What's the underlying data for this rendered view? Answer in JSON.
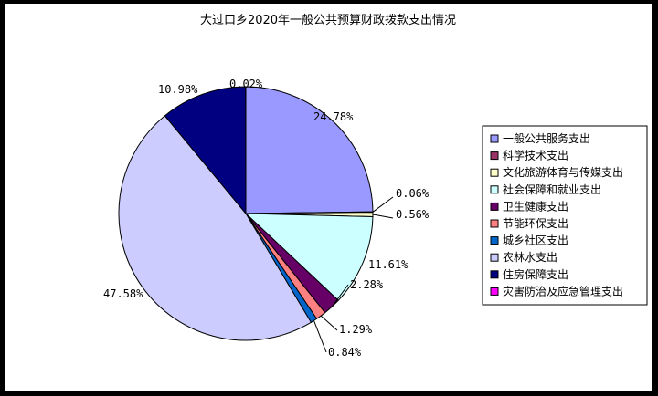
{
  "chart_data": {
    "type": "pie",
    "title": "大过口乡2020年一般公共预算财政拨款支出情况",
    "slices": [
      {
        "name": "一般公共服务支出",
        "value": 24.78,
        "label": "24.78%",
        "color": "#9999ff"
      },
      {
        "name": "科学技术支出",
        "value": 0.06,
        "label": "0.06%",
        "color": "#993366"
      },
      {
        "name": "文化旅游体育与传媒支出",
        "value": 0.56,
        "label": "0.56%",
        "color": "#ffffcc"
      },
      {
        "name": "社会保障和就业支出",
        "value": 11.61,
        "label": "11.61%",
        "color": "#ccffff"
      },
      {
        "name": "卫生健康支出",
        "value": 2.28,
        "label": "2.28%",
        "color": "#660066"
      },
      {
        "name": "节能环保支出",
        "value": 1.29,
        "label": "1.29%",
        "color": "#ff8080"
      },
      {
        "name": "城乡社区支出",
        "value": 0.84,
        "label": "0.84%",
        "color": "#0066cc"
      },
      {
        "name": "农林水支出",
        "value": 47.58,
        "label": "47.58%",
        "color": "#ccccff"
      },
      {
        "name": "住房保障支出",
        "value": 10.98,
        "label": "10.98%",
        "color": "#000080"
      },
      {
        "name": "灾害防治及应急管理支出",
        "value": 0.02,
        "label": "0.02%",
        "color": "#ff00ff"
      }
    ],
    "legend_position": "right"
  }
}
